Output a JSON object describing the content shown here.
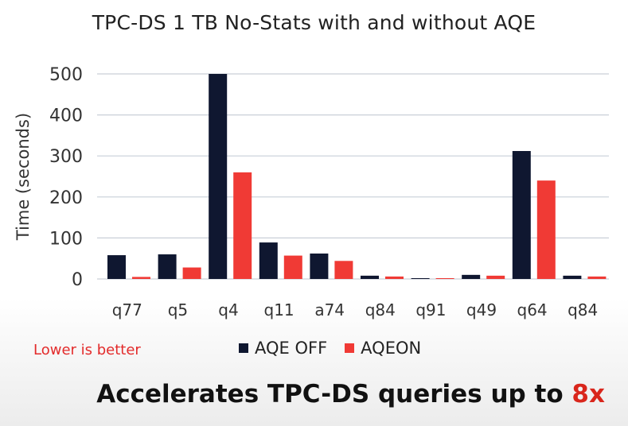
{
  "chart_data": {
    "type": "bar",
    "title": "TPC-DS 1 TB No-Stats with and without AQE",
    "ylabel": "Time (seconds)",
    "xlabel": "",
    "ylim": [
      0,
      500
    ],
    "yticks": [
      0,
      100,
      200,
      300,
      400,
      500
    ],
    "grid": true,
    "legend_position": "bottom",
    "categories": [
      "q77",
      "q5",
      "q4",
      "q11",
      "a74",
      "q84",
      "q91",
      "q49",
      "q64",
      "q84"
    ],
    "series": [
      {
        "name": "AQE OFF",
        "color": "#0f1730",
        "values": [
          58,
          60,
          500,
          89,
          62,
          8,
          2,
          10,
          312,
          8
        ]
      },
      {
        "name": "AQEON",
        "color": "#f03a35",
        "values": [
          5,
          28,
          260,
          57,
          44,
          6,
          2,
          8,
          240,
          6
        ]
      }
    ]
  },
  "note": "Lower is better",
  "headline": {
    "text": "Accelerates TPC-DS queries up to ",
    "accent": "8x"
  }
}
